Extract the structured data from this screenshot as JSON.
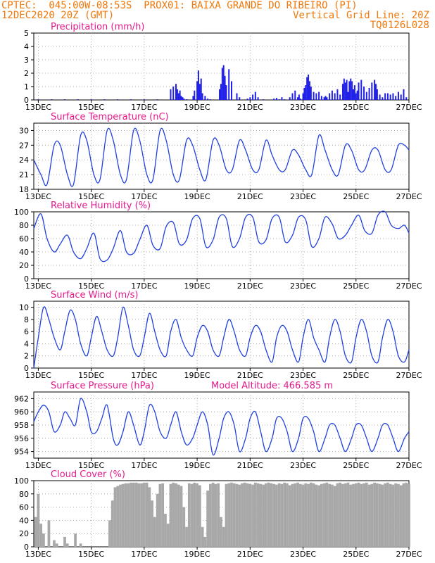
{
  "header": {
    "line1_left": "CPTEC:  045:00W-08:53S  PROX01: BAIXA GRANDE DO RIBEIRO (PI)",
    "line2_left": "12DEC2020 20Z (GMT)",
    "line2_right": "Vertical Grid Line: 20Z",
    "line3_right": "TQ0126L028"
  },
  "colors": {
    "header": "#f0780a",
    "panel_title": "#e6198c",
    "series": "#2040e0",
    "bars": "#2020e8",
    "cloud": "#a8a8a8",
    "axis": "#000000"
  },
  "x_axis": {
    "ticks": [
      "13DEC",
      "15DEC",
      "17DEC",
      "19DEC",
      "21DEC",
      "23DEC",
      "25DEC",
      "27DEC"
    ],
    "tick_days": [
      13,
      15,
      17,
      19,
      21,
      23,
      25,
      27
    ],
    "start_day": 12.83,
    "end_day": 27.0,
    "vertical_grid": "20Z",
    "grid": true
  },
  "chart_data": [
    {
      "type": "bar",
      "title": "Precipitation (mm/h)",
      "ylim": [
        0,
        5
      ],
      "yticks": [
        "0",
        "1",
        "2",
        "3",
        "4",
        "5"
      ],
      "x": [
        13.0,
        13.5,
        14.0,
        14.5,
        15.0,
        15.5,
        16.0,
        16.5,
        17.0,
        17.5,
        18.0,
        18.1,
        18.2,
        18.25,
        18.3,
        18.35,
        18.4,
        18.45,
        18.5,
        18.6,
        18.85,
        18.9,
        19.0,
        19.05,
        19.1,
        19.15,
        19.2,
        19.3,
        19.4,
        19.5,
        19.85,
        19.9,
        19.95,
        20.0,
        20.05,
        20.1,
        20.2,
        20.3,
        20.5,
        20.6,
        20.9,
        21.0,
        21.1,
        21.2,
        21.3,
        21.5,
        21.9,
        22.0,
        22.1,
        22.2,
        22.3,
        22.5,
        22.6,
        22.7,
        22.8,
        22.85,
        22.9,
        23.0,
        23.05,
        23.1,
        23.15,
        23.2,
        23.25,
        23.3,
        23.4,
        23.5,
        23.6,
        23.7,
        23.8,
        23.85,
        23.9,
        24.0,
        24.1,
        24.2,
        24.3,
        24.4,
        24.5,
        24.55,
        24.6,
        24.65,
        24.7,
        24.75,
        24.8,
        24.85,
        24.9,
        24.95,
        25.0,
        25.05,
        25.1,
        25.2,
        25.3,
        25.4,
        25.5,
        25.6,
        25.7,
        25.75,
        25.8,
        25.9,
        26.0,
        26.1,
        26.2,
        26.3,
        26.4,
        26.5,
        26.6,
        26.7,
        26.8,
        26.9
      ],
      "values": [
        0.05,
        0.05,
        0.05,
        0.05,
        0.05,
        0.05,
        0.05,
        0.05,
        0.05,
        0.05,
        0.8,
        1.0,
        1.2,
        0.8,
        0.5,
        0.7,
        0.3,
        0.2,
        0.1,
        0.05,
        0.3,
        0.7,
        1.4,
        2.2,
        1.2,
        1.6,
        0.5,
        0.3,
        0.1,
        0.05,
        0.8,
        1.2,
        2.4,
        2.6,
        1.8,
        1.1,
        2.3,
        1.4,
        0.5,
        0.2,
        0.1,
        0.2,
        0.4,
        0.6,
        0.2,
        0.05,
        0.1,
        0.15,
        0.05,
        0.2,
        0.05,
        0.2,
        0.5,
        0.7,
        0.2,
        0.4,
        0.1,
        0.5,
        0.9,
        1.1,
        1.7,
        1.9,
        1.4,
        1.0,
        0.6,
        0.5,
        0.6,
        0.3,
        0.2,
        0.3,
        0.2,
        0.5,
        0.7,
        0.5,
        0.8,
        0.4,
        1.2,
        1.6,
        1.3,
        1.5,
        0.6,
        1.4,
        1.6,
        1.4,
        0.8,
        1.1,
        0.5,
        0.7,
        1.3,
        1.5,
        1.0,
        0.6,
        0.9,
        1.3,
        1.5,
        1.2,
        0.8,
        0.4,
        0.2,
        0.5,
        0.5,
        0.4,
        0.5,
        0.3,
        0.6,
        0.4,
        0.8,
        0.2
      ]
    },
    {
      "type": "line",
      "title": "Surface Temperature (nC)",
      "ylim": [
        18,
        31.5
      ],
      "yticks": [
        "18",
        "21",
        "24",
        "27",
        "30"
      ],
      "ytick_values": [
        18,
        21,
        24,
        27,
        30
      ],
      "x": [
        12.83,
        13.1,
        13.33,
        13.6,
        13.83,
        14.1,
        14.33,
        14.6,
        14.83,
        15.1,
        15.33,
        15.6,
        15.83,
        16.1,
        16.33,
        16.6,
        16.83,
        17.1,
        17.33,
        17.6,
        17.83,
        18.1,
        18.33,
        18.6,
        18.83,
        19.1,
        19.33,
        19.6,
        19.83,
        20.1,
        20.33,
        20.6,
        20.83,
        21.1,
        21.33,
        21.6,
        21.83,
        22.1,
        22.33,
        22.6,
        22.83,
        23.1,
        23.33,
        23.6,
        23.83,
        24.1,
        24.33,
        24.6,
        24.83,
        25.1,
        25.33,
        25.6,
        25.83,
        26.1,
        26.33,
        26.6,
        26.83,
        27.0
      ],
      "values": [
        24,
        21,
        19,
        27,
        27,
        21,
        19,
        29,
        28,
        21,
        20,
        30,
        28,
        21,
        20,
        30,
        28,
        21,
        20,
        30,
        28,
        21,
        20,
        28,
        27,
        22,
        20,
        28,
        27,
        22,
        22,
        28,
        26,
        22,
        22,
        28,
        25,
        22,
        22,
        26,
        25,
        22,
        21,
        29,
        26,
        22,
        21,
        27,
        26,
        22,
        22,
        26,
        26,
        22,
        22,
        27,
        27,
        26
      ]
    },
    {
      "type": "line",
      "title": "Relative Humidity (%)",
      "ylim": [
        0,
        100
      ],
      "yticks": [
        "0",
        "20",
        "40",
        "60",
        "80",
        "100"
      ],
      "x": [
        12.83,
        13.1,
        13.33,
        13.6,
        13.83,
        14.1,
        14.33,
        14.6,
        14.83,
        15.1,
        15.33,
        15.6,
        15.83,
        16.1,
        16.33,
        16.6,
        16.83,
        17.1,
        17.33,
        17.6,
        17.83,
        18.1,
        18.33,
        18.6,
        18.83,
        19.1,
        19.33,
        19.6,
        19.83,
        20.1,
        20.33,
        20.6,
        20.83,
        21.1,
        21.33,
        21.6,
        21.83,
        22.1,
        22.33,
        22.6,
        22.83,
        23.1,
        23.33,
        23.6,
        23.83,
        24.1,
        24.33,
        24.6,
        24.83,
        25.1,
        25.33,
        25.6,
        25.83,
        26.1,
        26.33,
        26.6,
        26.83,
        27.0
      ],
      "values": [
        75,
        97,
        60,
        40,
        52,
        65,
        40,
        30,
        45,
        68,
        30,
        28,
        45,
        72,
        40,
        38,
        58,
        80,
        50,
        45,
        78,
        84,
        52,
        58,
        90,
        90,
        48,
        58,
        92,
        90,
        48,
        60,
        92,
        92,
        55,
        58,
        90,
        92,
        55,
        65,
        92,
        88,
        48,
        60,
        92,
        82,
        60,
        65,
        80,
        95,
        72,
        68,
        95,
        100,
        80,
        75,
        80,
        68
      ]
    },
    {
      "type": "line",
      "title": "Surface Wind (m/s)",
      "ylim": [
        0,
        11
      ],
      "yticks": [
        "0",
        "2",
        "4",
        "6",
        "8",
        "10"
      ],
      "ytick_values": [
        0,
        2,
        4,
        6,
        8,
        10
      ],
      "x": [
        12.83,
        13.0,
        13.2,
        13.4,
        13.6,
        13.83,
        14.0,
        14.2,
        14.4,
        14.6,
        14.83,
        15.0,
        15.2,
        15.4,
        15.6,
        15.83,
        16.0,
        16.2,
        16.4,
        16.6,
        16.83,
        17.0,
        17.2,
        17.4,
        17.6,
        17.83,
        18.0,
        18.2,
        18.4,
        18.6,
        18.83,
        19.0,
        19.2,
        19.4,
        19.6,
        19.83,
        20.0,
        20.2,
        20.4,
        20.6,
        20.83,
        21.0,
        21.2,
        21.4,
        21.6,
        21.83,
        22.0,
        22.2,
        22.4,
        22.6,
        22.83,
        23.0,
        23.2,
        23.4,
        23.6,
        23.83,
        24.0,
        24.2,
        24.4,
        24.6,
        24.83,
        25.0,
        25.2,
        25.4,
        25.6,
        25.83,
        26.0,
        26.2,
        26.4,
        26.6,
        26.83,
        27.0
      ],
      "values": [
        0,
        5,
        10,
        8,
        5,
        3,
        6,
        9.5,
        8,
        4,
        2,
        5,
        8.5,
        6,
        3,
        2,
        5,
        10,
        7,
        3,
        2,
        5,
        9,
        6,
        3,
        2,
        6,
        8,
        5,
        3,
        2,
        5,
        7,
        6,
        3,
        2,
        5,
        8,
        6,
        3,
        2,
        5,
        7,
        6,
        3,
        1,
        5,
        7,
        6,
        3,
        1,
        5,
        8,
        5,
        3,
        1,
        5,
        8,
        6,
        2,
        1,
        5,
        8,
        6,
        2,
        1,
        5,
        8,
        6,
        2,
        1,
        3
      ]
    },
    {
      "type": "line",
      "title": "Surface Pressure (hPa)",
      "annotation": "Model Altitude: 466.585 m",
      "ylim": [
        953,
        963
      ],
      "yticks": [
        "954",
        "956",
        "958",
        "960",
        "962"
      ],
      "ytick_values": [
        954,
        956,
        958,
        960,
        962
      ],
      "x": [
        12.83,
        13.0,
        13.2,
        13.4,
        13.6,
        13.83,
        14.0,
        14.2,
        14.4,
        14.6,
        14.83,
        15.0,
        15.2,
        15.4,
        15.6,
        15.83,
        16.0,
        16.2,
        16.4,
        16.6,
        16.83,
        17.0,
        17.2,
        17.4,
        17.6,
        17.83,
        18.0,
        18.2,
        18.4,
        18.6,
        18.83,
        19.0,
        19.2,
        19.4,
        19.6,
        19.83,
        20.0,
        20.2,
        20.4,
        20.6,
        20.83,
        21.0,
        21.2,
        21.4,
        21.6,
        21.83,
        22.0,
        22.2,
        22.4,
        22.6,
        22.83,
        23.0,
        23.2,
        23.4,
        23.6,
        23.83,
        24.0,
        24.2,
        24.4,
        24.6,
        24.83,
        25.0,
        25.2,
        25.4,
        25.6,
        25.83,
        26.0,
        26.2,
        26.4,
        26.6,
        26.83,
        27.0
      ],
      "values": [
        958.5,
        960,
        961,
        960,
        957,
        958,
        960,
        959,
        958,
        962,
        960,
        957,
        957,
        959,
        961,
        956,
        955,
        957,
        960,
        958,
        955,
        957,
        961,
        960,
        957,
        956,
        958,
        960,
        957,
        955,
        956,
        958,
        960,
        958,
        953.5,
        956,
        959,
        960,
        958,
        954,
        956,
        959,
        960,
        957,
        954,
        956,
        959,
        959,
        957,
        954,
        956,
        959,
        959,
        957,
        954,
        956,
        958,
        958,
        956,
        954,
        956,
        958,
        958,
        956,
        954,
        956,
        958,
        958,
        956,
        954,
        956,
        957
      ]
    },
    {
      "type": "bar",
      "title": "Cloud Cover (%)",
      "ylim": [
        0,
        100
      ],
      "yticks": [
        "0",
        "20",
        "40",
        "60",
        "80",
        "100"
      ],
      "x": [
        12.9,
        13.0,
        13.1,
        13.2,
        13.3,
        13.4,
        13.5,
        13.6,
        13.7,
        13.8,
        13.9,
        14.0,
        14.1,
        14.2,
        14.3,
        14.4,
        14.5,
        14.6,
        14.7,
        14.8,
        14.9,
        15.0,
        15.1,
        15.2,
        15.3,
        15.4,
        15.5,
        15.6,
        15.7,
        15.8,
        15.9,
        16.0,
        16.1,
        16.2,
        16.3,
        16.4,
        16.5,
        16.6,
        16.7,
        16.8,
        16.9,
        17.0,
        17.1,
        17.2,
        17.3,
        17.4,
        17.5,
        17.6,
        17.7,
        17.8,
        17.9,
        18.0,
        18.1,
        18.2,
        18.3,
        18.4,
        18.5,
        18.6,
        18.7,
        18.8,
        18.9,
        19.0,
        19.1,
        19.2,
        19.3,
        19.4,
        19.5,
        19.6,
        19.7,
        19.8,
        19.9,
        20.0,
        20.1,
        20.2,
        20.3,
        20.4,
        20.5,
        20.6,
        20.7,
        20.8,
        20.9,
        21.0,
        21.1,
        21.2,
        21.3,
        21.4,
        21.5,
        21.6,
        21.7,
        21.8,
        21.9,
        22.0,
        22.1,
        22.2,
        22.3,
        22.4,
        22.5,
        22.6,
        22.7,
        22.8,
        22.9,
        23.0,
        23.1,
        23.2,
        23.3,
        23.4,
        23.5,
        23.6,
        23.7,
        23.8,
        23.9,
        24.0,
        24.1,
        24.2,
        24.3,
        24.4,
        24.5,
        24.6,
        24.7,
        24.8,
        24.9,
        25.0,
        25.1,
        25.2,
        25.3,
        25.4,
        25.5,
        25.6,
        25.7,
        25.8,
        25.9,
        26.0,
        26.1,
        26.2,
        26.3,
        26.4,
        26.5,
        26.6,
        26.7,
        26.8,
        26.9,
        27.0
      ],
      "values": [
        45,
        80,
        35,
        20,
        0,
        40,
        0,
        10,
        5,
        0,
        0,
        15,
        5,
        0,
        0,
        20,
        0,
        5,
        0,
        0,
        0,
        0,
        0,
        0,
        0,
        0,
        0,
        0,
        40,
        70,
        90,
        92,
        94,
        95,
        96,
        96,
        97,
        97,
        97,
        96,
        96,
        97,
        97,
        90,
        70,
        45,
        80,
        95,
        96,
        50,
        35,
        95,
        97,
        96,
        94,
        92,
        60,
        30,
        96,
        95,
        97,
        96,
        93,
        30,
        15,
        85,
        95,
        97,
        95,
        96,
        45,
        30,
        95,
        96,
        97,
        96,
        95,
        94,
        96,
        97,
        96,
        95,
        94,
        97,
        96,
        95,
        94,
        96,
        97,
        96,
        95,
        94,
        96,
        95,
        97,
        96,
        93,
        95,
        96,
        97,
        95,
        94,
        96,
        95,
        97,
        96,
        94,
        93,
        95,
        96,
        97,
        95,
        94,
        92,
        96,
        97,
        95,
        96,
        97,
        94,
        95,
        96,
        97,
        95,
        96,
        97,
        94,
        95,
        97,
        96,
        95,
        94,
        96,
        97,
        95,
        94,
        96,
        95,
        93,
        96,
        97,
        95
      ]
    }
  ]
}
